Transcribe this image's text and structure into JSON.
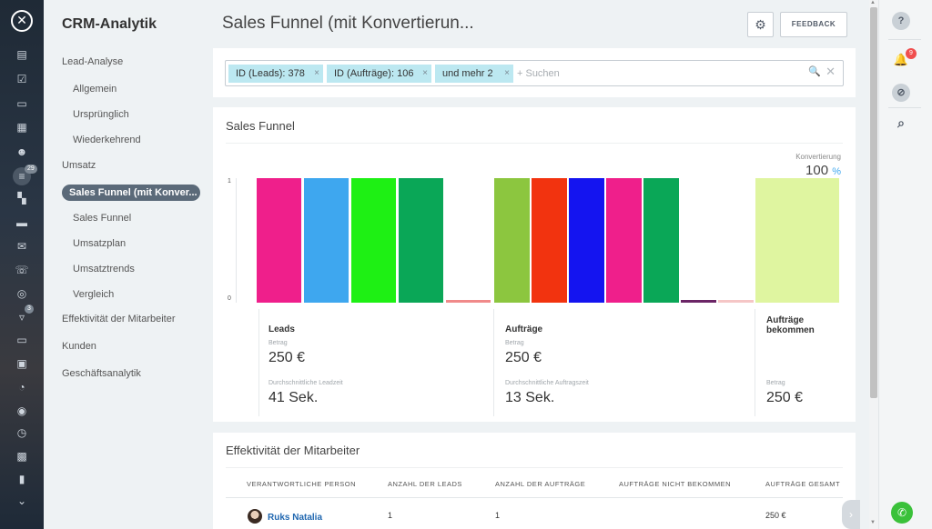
{
  "sidebar_rail": {
    "close_glyph": "✕",
    "icons": [
      "home-icon",
      "tasks-icon",
      "chat-icon",
      "calendar-icon",
      "contacts-icon",
      "crm-icon",
      "grid-icon",
      "store-icon",
      "mail-icon",
      "phone-icon",
      "target-icon",
      "cart-icon",
      "sites-icon",
      "window-icon",
      "dollar-icon",
      "clock-icon",
      "id-card-icon",
      "analytics-icon",
      "more-icon"
    ],
    "crm_badge": "29",
    "cart_badge": "3"
  },
  "nav": {
    "title": "CRM-Analytik",
    "items": {
      "lead_analyse": "Lead-Analyse",
      "allgemein": "Allgemein",
      "urspruenglich": "Ursprünglich",
      "wiederkehrend": "Wiederkehrend",
      "umsatz": "Umsatz",
      "active": "Sales Funnel (mit Konver...",
      "sales_funnel": "Sales Funnel",
      "umsatzplan": "Umsatzplan",
      "umsatztrends": "Umsatztrends",
      "vergleich": "Vergleich",
      "effektivitaet": "Effektivität der Mitarbeiter",
      "kunden": "Kunden",
      "geschaeftsanalytik": "Geschäftsanalytik"
    }
  },
  "header": {
    "title": "Sales Funnel (mit Konvertierun...",
    "gear_glyph": "⚙",
    "feedback_label": "FEEDBACK"
  },
  "filter": {
    "tags": [
      "ID (Leads): 378",
      "ID (Aufträge): 106",
      "und mehr 2"
    ],
    "tag_close": "×",
    "placeholder": "+ Suchen",
    "search_glyph": "🔍",
    "clear_glyph": "✕"
  },
  "funnel": {
    "title": "Sales Funnel",
    "conversion_label": "Konvertierung",
    "conversion_value": "100",
    "conversion_unit": "%",
    "y_ticks": [
      "1",
      "0"
    ],
    "groups": {
      "leads": {
        "title": "Leads",
        "amount_label": "Betrag",
        "amount": "250 €",
        "time_label": "Durchschnittliche Leadzeit",
        "time": "41 Sek."
      },
      "orders": {
        "title": "Aufträge",
        "amount_label": "Betrag",
        "amount": "250 €",
        "time_label": "Durchschnittliche Auftragszeit",
        "time": "13 Sek."
      },
      "won": {
        "title": "Aufträge bekommen",
        "amount_label": "Betrag",
        "amount": "250 €"
      }
    }
  },
  "chart_data": {
    "type": "bar",
    "title": "Sales Funnel",
    "ylim": [
      0,
      1
    ],
    "y_ticks": [
      0,
      1
    ],
    "series": [
      {
        "name": "Leads",
        "values": [
          1,
          1,
          1,
          1,
          0.02
        ],
        "colors": [
          "#ef1f8b",
          "#3ea7ef",
          "#1ef014",
          "#0aa757",
          "#f08a8a"
        ]
      },
      {
        "name": "Aufträge",
        "values": [
          1,
          1,
          1,
          1,
          1,
          0.02,
          0.02
        ],
        "colors": [
          "#8cc63f",
          "#f2330f",
          "#1414f0",
          "#ef1f8b",
          "#0aa757",
          "#6b2566",
          "#f5c6c6"
        ]
      },
      {
        "name": "Aufträge bekommen",
        "values": [
          1
        ],
        "colors": [
          "#dff5a0"
        ]
      }
    ],
    "conversion": "100 %"
  },
  "staff": {
    "title": "Effektivität der Mitarbeiter",
    "columns": [
      "VERANTWORTLICHE PERSON",
      "ANZAHL DER LEADS",
      "ANZAHL DER AUFTRÄGE",
      "AUFTRÄGE NICHT BEKOMMEN",
      "AUFTRÄGE GESAMT"
    ],
    "rows": [
      {
        "name": "Ruks Natalia",
        "leads": "1",
        "orders": "1",
        "not_won": "",
        "total": "250 €"
      }
    ],
    "next_glyph": "›"
  },
  "scrollbar": {
    "up_glyph": "▲",
    "down_glyph": "▼"
  },
  "right_rail": {
    "help_glyph": "?",
    "bell_glyph": "🔔",
    "bell_badge": "9",
    "stop_glyph": "⊘",
    "search_glyph": "⌕",
    "phone_glyph": "✆"
  }
}
